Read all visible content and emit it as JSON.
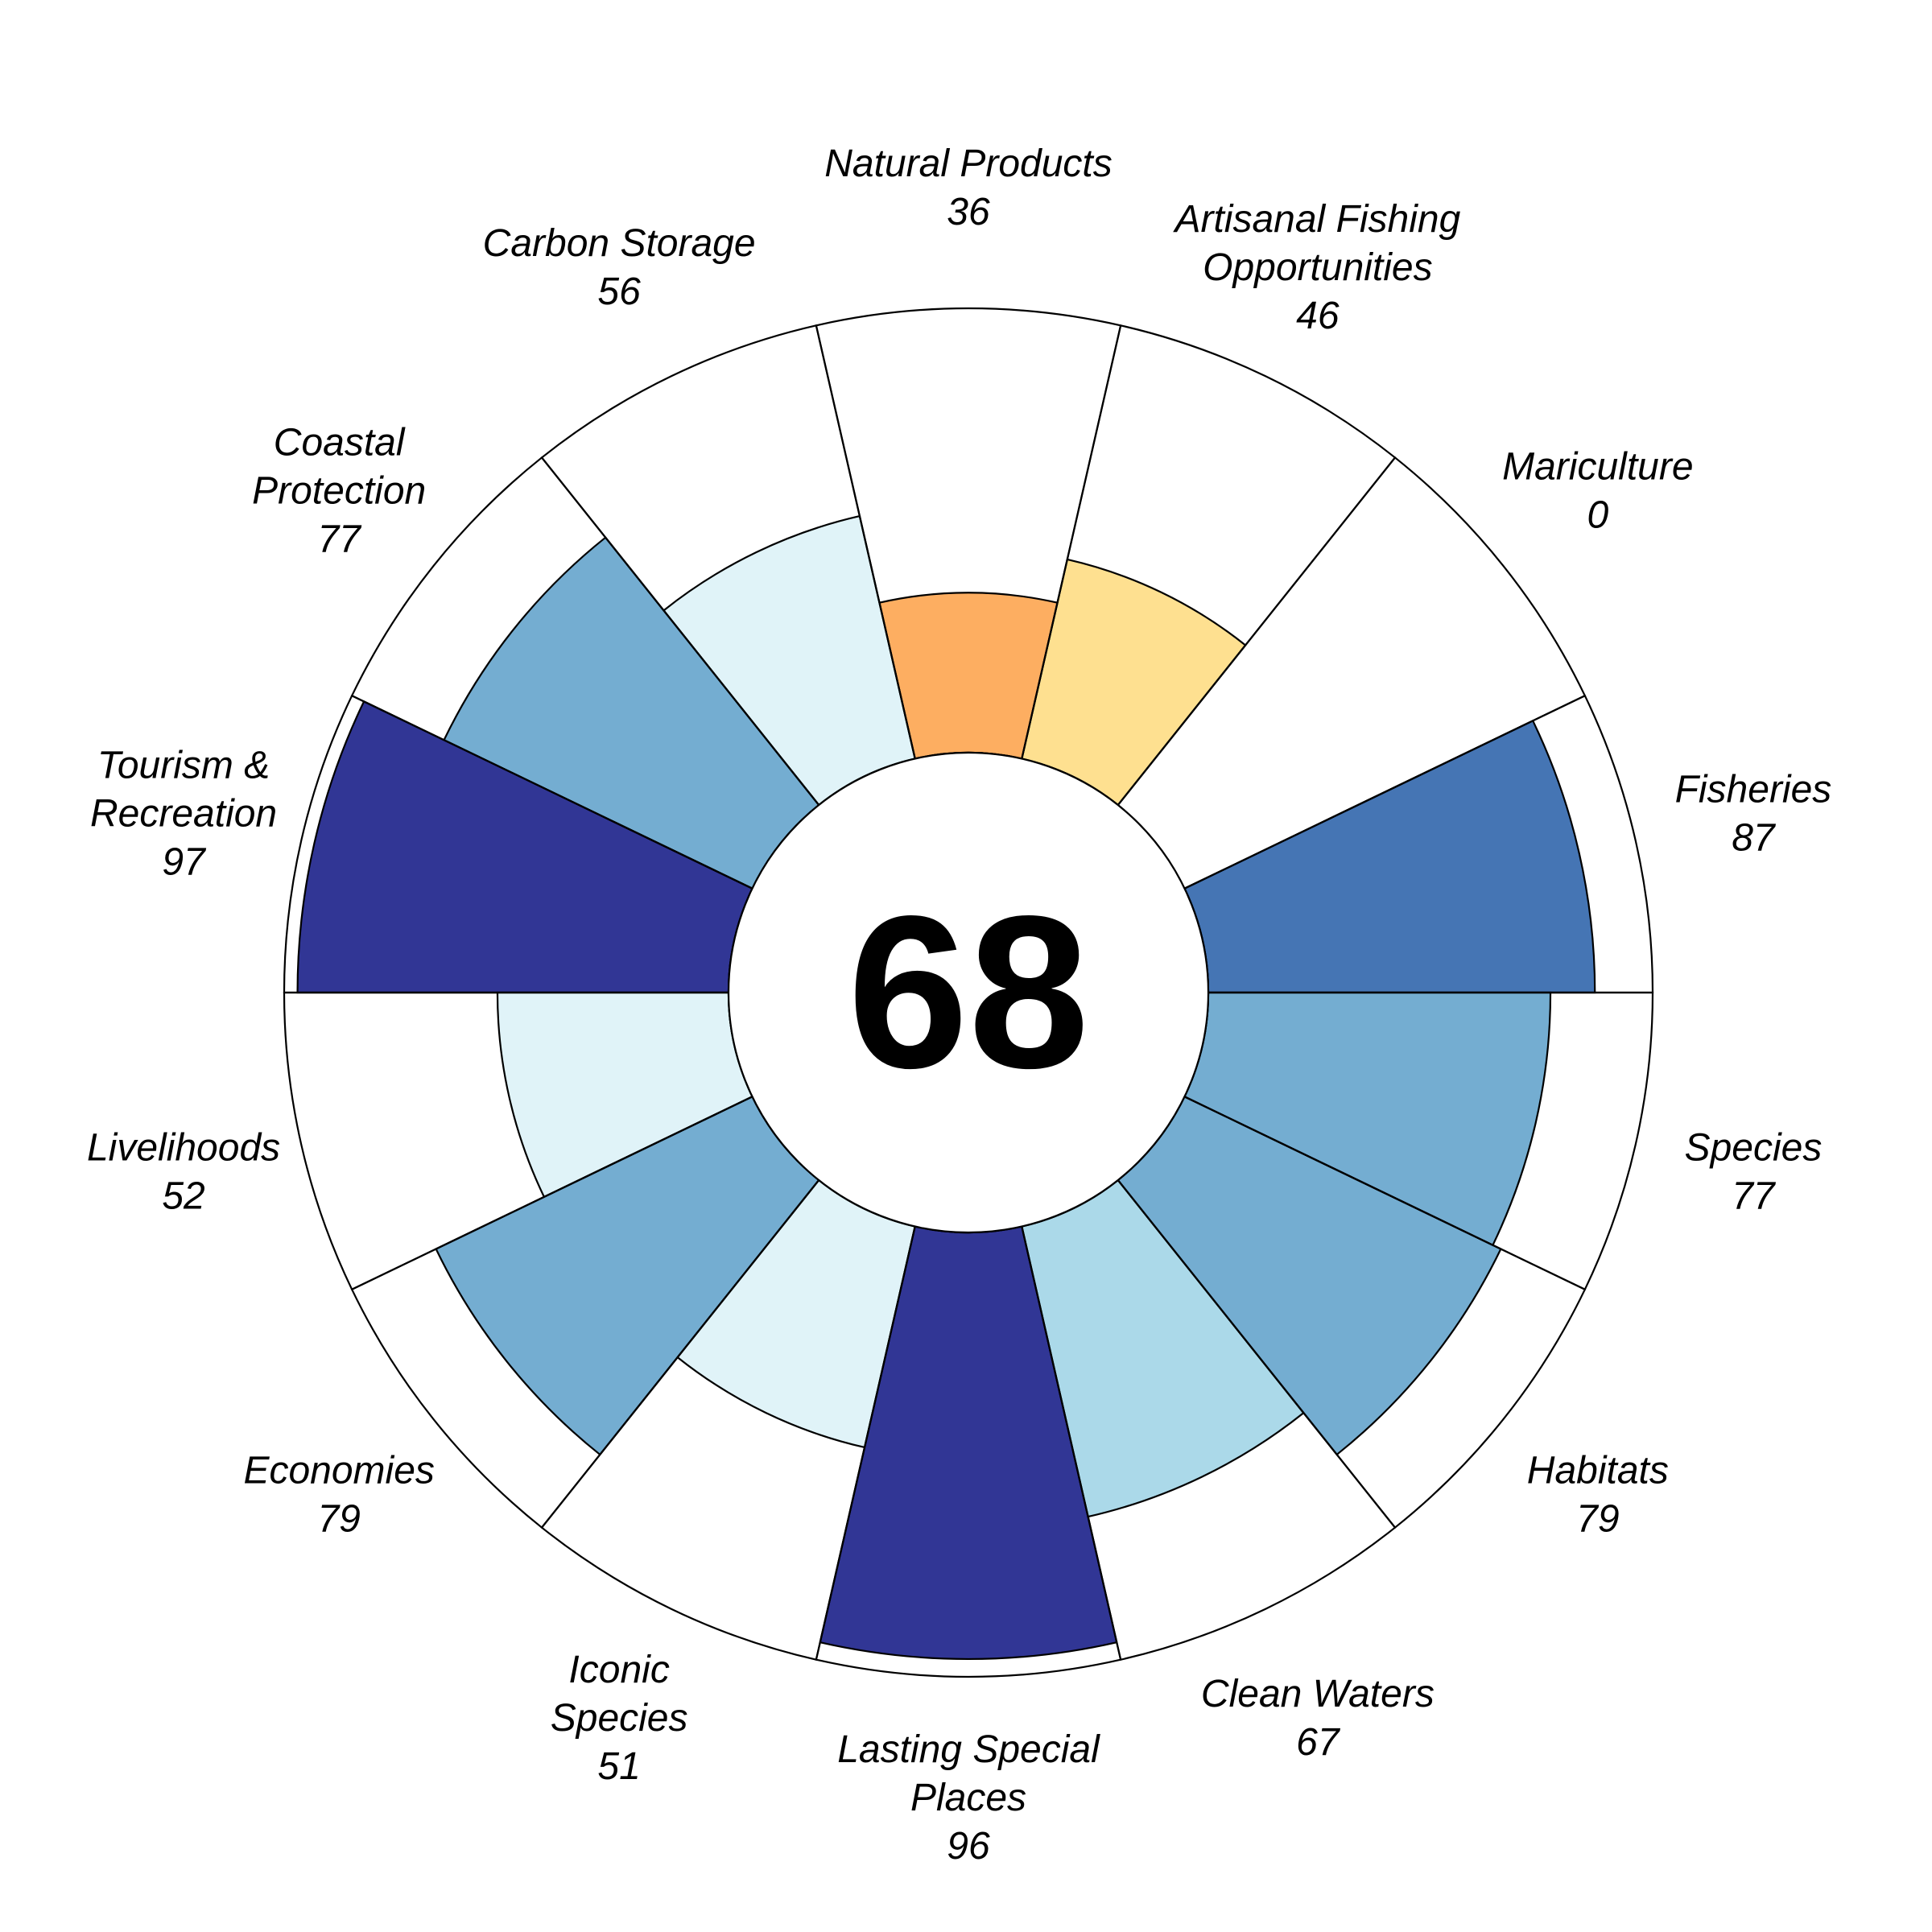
{
  "chart_data": {
    "type": "flower",
    "center_score": "68",
    "ylim": [
      0,
      100
    ],
    "petals": [
      {
        "label": [
          "Fisheries"
        ],
        "value": 87,
        "color": "#4575b4"
      },
      {
        "label": [
          "Mariculture"
        ],
        "value": 0,
        "color": "#a50026"
      },
      {
        "label": [
          "Artisanal Fishing",
          "Opportunities"
        ],
        "value": 46,
        "color": "#fee090"
      },
      {
        "label": [
          "Natural Products"
        ],
        "value": 36,
        "color": "#fdae61"
      },
      {
        "label": [
          "Carbon Storage"
        ],
        "value": 56,
        "color": "#e0f3f8"
      },
      {
        "label": [
          "Coastal",
          "Protection"
        ],
        "value": 77,
        "color": "#74add1"
      },
      {
        "label": [
          "Tourism &",
          "Recreation"
        ],
        "value": 97,
        "color": "#313695"
      },
      {
        "label": [
          "Livelihoods"
        ],
        "value": 52,
        "color": "#e0f3f8"
      },
      {
        "label": [
          "Economies"
        ],
        "value": 79,
        "color": "#74add1"
      },
      {
        "label": [
          "Iconic",
          "Species"
        ],
        "value": 51,
        "color": "#e0f3f8"
      },
      {
        "label": [
          "Lasting Special",
          "Places"
        ],
        "value": 96,
        "color": "#313695"
      },
      {
        "label": [
          "Clean Waters"
        ],
        "value": 67,
        "color": "#abd9e9"
      },
      {
        "label": [
          "Habitats"
        ],
        "value": 79,
        "color": "#74add1"
      },
      {
        "label": [
          "Species"
        ],
        "value": 77,
        "color": "#74add1"
      }
    ]
  }
}
